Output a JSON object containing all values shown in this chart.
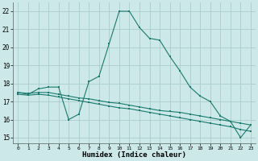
{
  "xlabel": "Humidex (Indice chaleur)",
  "xlim": [
    -0.5,
    23.5
  ],
  "ylim": [
    14.7,
    22.5
  ],
  "xticks": [
    0,
    1,
    2,
    3,
    4,
    5,
    6,
    7,
    8,
    9,
    10,
    11,
    12,
    13,
    14,
    15,
    16,
    17,
    18,
    19,
    20,
    21,
    22,
    23
  ],
  "yticks": [
    15,
    16,
    17,
    18,
    19,
    20,
    21,
    22
  ],
  "background_color": "#cce8e8",
  "grid_color": "#aacccc",
  "line_color": "#1a7a6e",
  "lines": [
    {
      "x": [
        0,
        1,
        2,
        3,
        4,
        5,
        6,
        7,
        8,
        9,
        10,
        11,
        12,
        13,
        14,
        15,
        16,
        17,
        18,
        19,
        20,
        21,
        22,
        23
      ],
      "y": [
        17.5,
        17.4,
        17.7,
        17.8,
        17.8,
        16.0,
        16.3,
        18.1,
        18.4,
        20.2,
        22.0,
        22.0,
        21.1,
        20.5,
        20.4,
        19.5,
        18.7,
        17.8,
        17.3,
        17.0,
        16.2,
        15.9,
        15.0,
        15.7
      ]
    },
    {
      "x": [
        0,
        1,
        2,
        3,
        4,
        5,
        6,
        7,
        8,
        9,
        10,
        11,
        12,
        13,
        14,
        15,
        16,
        17,
        18,
        19,
        20,
        21,
        22,
        23
      ],
      "y": [
        17.5,
        17.45,
        17.5,
        17.5,
        17.4,
        17.3,
        17.2,
        17.15,
        17.05,
        16.95,
        16.9,
        16.8,
        16.7,
        16.6,
        16.5,
        16.45,
        16.4,
        16.3,
        16.2,
        16.1,
        16.0,
        15.9,
        15.8,
        15.7
      ]
    },
    {
      "x": [
        0,
        1,
        2,
        3,
        4,
        5,
        6,
        7,
        8,
        9,
        10,
        11,
        12,
        13,
        14,
        15,
        16,
        17,
        18,
        19,
        20,
        21,
        22,
        23
      ],
      "y": [
        17.4,
        17.35,
        17.4,
        17.35,
        17.25,
        17.15,
        17.05,
        16.95,
        16.85,
        16.75,
        16.65,
        16.6,
        16.5,
        16.4,
        16.3,
        16.2,
        16.1,
        16.0,
        15.9,
        15.8,
        15.7,
        15.6,
        15.45,
        15.35
      ]
    }
  ]
}
